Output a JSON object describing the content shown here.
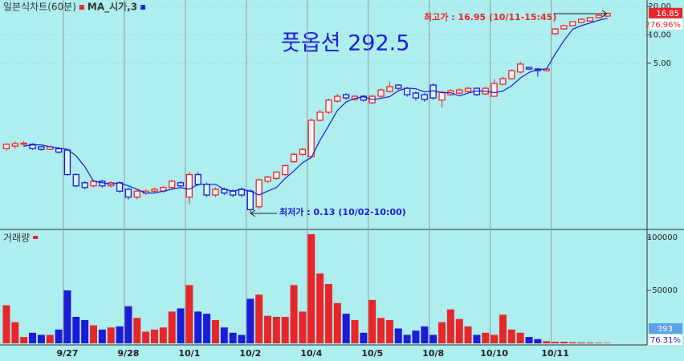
{
  "chart_data": [
    {
      "type": "candlestick",
      "title": "일본식차트(60분)",
      "headline": "풋옵션 292.5",
      "categories": [
        null,
        null,
        null,
        null,
        null,
        null,
        null,
        "9/27",
        null,
        null,
        null,
        null,
        null,
        null,
        "9/28",
        null,
        null,
        null,
        null,
        null,
        null,
        "10/1",
        null,
        null,
        null,
        null,
        null,
        null,
        "10/2",
        null,
        null,
        null,
        null,
        null,
        null,
        "10/4",
        null,
        null,
        null,
        null,
        null,
        null,
        "10/5",
        null,
        null,
        null,
        null,
        null,
        null,
        "10/8",
        null,
        null,
        null,
        null,
        null,
        null,
        "10/10",
        null,
        null,
        null,
        null,
        null,
        null,
        "10/11",
        null,
        null,
        null,
        null,
        null,
        null
      ],
      "open": [
        0.62,
        0.66,
        0.69,
        0.69,
        0.65,
        0.61,
        0.62,
        0.6,
        0.33,
        0.27,
        0.25,
        0.28,
        0.25,
        0.27,
        0.23,
        0.19,
        0.21,
        0.22,
        0.22,
        0.24,
        0.27,
        0.19,
        0.33,
        0.26,
        0.2,
        0.23,
        0.22,
        0.23,
        0.22,
        0.15,
        0.28,
        0.3,
        0.33,
        0.45,
        0.54,
        0.51,
        1.24,
        1.51,
        1.98,
        2.32,
        2.06,
        2.23,
        1.9,
        2.23,
        2.51,
        2.93,
        2.71,
        2.41,
        2.32,
        2.93,
        2.03,
        2.32,
        2.41,
        2.51,
        2.71,
        2.36,
        2.23,
        2.99,
        3.43,
        4.03,
        4.51,
        4.34,
        4.17,
        10.27,
        11.55,
        12.5,
        13.52,
        14.0,
        15.21,
        15.8
      ],
      "high": [
        0.71,
        0.74,
        0.75,
        0.71,
        0.66,
        0.67,
        0.64,
        0.62,
        0.34,
        0.28,
        0.29,
        0.29,
        0.28,
        0.28,
        0.24,
        0.23,
        0.23,
        0.24,
        0.25,
        0.29,
        0.28,
        0.35,
        0.35,
        0.27,
        0.24,
        0.24,
        0.23,
        0.24,
        0.23,
        0.3,
        0.32,
        0.36,
        0.42,
        0.56,
        0.63,
        1.3,
        1.6,
        2.1,
        2.35,
        2.4,
        2.3,
        2.3,
        2.3,
        2.7,
        3.2,
        3.0,
        2.8,
        2.5,
        2.4,
        3.05,
        2.55,
        2.65,
        2.7,
        2.8,
        2.75,
        2.8,
        3.4,
        3.6,
        4.3,
        5.2,
        4.6,
        4.45,
        4.4,
        11.8,
        12.8,
        14.0,
        14.9,
        15.5,
        16.4,
        16.95
      ],
      "low": [
        0.59,
        0.62,
        0.65,
        0.6,
        0.59,
        0.6,
        0.55,
        0.32,
        0.24,
        0.23,
        0.24,
        0.24,
        0.24,
        0.21,
        0.18,
        0.18,
        0.2,
        0.21,
        0.21,
        0.23,
        0.24,
        0.16,
        0.25,
        0.19,
        0.19,
        0.2,
        0.19,
        0.19,
        0.13,
        0.14,
        0.27,
        0.29,
        0.32,
        0.44,
        0.52,
        0.5,
        1.2,
        1.45,
        1.9,
        2.05,
        2.0,
        1.95,
        1.85,
        2.15,
        2.45,
        2.6,
        2.2,
        2.0,
        1.95,
        2.05,
        1.7,
        2.25,
        2.35,
        2.45,
        2.25,
        2.3,
        2.2,
        2.9,
        3.35,
        3.9,
        4.25,
        3.6,
        4.1,
        10.0,
        11.3,
        12.3,
        13.3,
        13.8,
        15.0,
        15.6
      ],
      "close": [
        0.69,
        0.7,
        0.71,
        0.62,
        0.61,
        0.65,
        0.57,
        0.33,
        0.25,
        0.24,
        0.28,
        0.25,
        0.27,
        0.22,
        0.19,
        0.22,
        0.22,
        0.23,
        0.24,
        0.28,
        0.25,
        0.33,
        0.26,
        0.2,
        0.23,
        0.21,
        0.2,
        0.2,
        0.14,
        0.29,
        0.31,
        0.35,
        0.41,
        0.54,
        0.61,
        1.24,
        1.51,
        2.03,
        2.23,
        2.14,
        2.23,
        2.03,
        2.23,
        2.6,
        2.82,
        2.71,
        2.32,
        2.14,
        2.06,
        2.14,
        2.46,
        2.55,
        2.6,
        2.71,
        2.32,
        2.71,
        3.05,
        3.43,
        4.17,
        4.89,
        4.34,
        4.17,
        4.34,
        11.55,
        12.5,
        13.79,
        14.62,
        15.21,
        16.12,
        16.85
      ],
      "up_color": "#e8262a",
      "down_color": "#1c1cd6",
      "series": [
        {
          "name": "MA_시가,3",
          "color": "#1c1cd6",
          "values": [
            null,
            null,
            0.66,
            0.68,
            0.68,
            0.65,
            0.63,
            0.61,
            0.52,
            0.4,
            0.28,
            0.27,
            0.26,
            0.27,
            0.25,
            0.23,
            0.21,
            0.21,
            0.22,
            0.23,
            0.24,
            0.23,
            0.26,
            0.26,
            0.26,
            0.23,
            0.22,
            0.23,
            0.22,
            0.2,
            0.22,
            0.24,
            0.3,
            0.36,
            0.44,
            0.5,
            0.76,
            1.09,
            1.58,
            1.94,
            2.12,
            2.2,
            2.06,
            2.12,
            2.21,
            2.56,
            2.72,
            2.68,
            2.48,
            2.55,
            2.43,
            2.43,
            2.25,
            2.41,
            2.54,
            2.53,
            2.43,
            2.53,
            2.88,
            3.48,
            3.99,
            4.29,
            4.34,
            6.26,
            8.66,
            11.44,
            12.52,
            13.34,
            14.24,
            15.0
          ]
        }
      ],
      "log_scale": true,
      "ylim": [
        0.088,
        23.4
      ],
      "yticks": [
        {
          "value": 20,
          "label": "20.00"
        },
        {
          "value": 10,
          "label": "10.00"
        },
        {
          "value": 5,
          "label": "5.00"
        }
      ],
      "change_label": "276.96%",
      "annotations": [
        {
          "text": "최고가 : 16.95 (10/11-15:45)",
          "color": "#e8262a"
        },
        {
          "text": "최저가 : 0.13 (10/02-10:00)",
          "color": "#1c1cd6"
        }
      ]
    },
    {
      "type": "bar",
      "title": "거래량",
      "values": [
        36000,
        20000,
        6000,
        10000,
        8000,
        8000,
        13000,
        50000,
        25000,
        22000,
        17000,
        13000,
        15000,
        16000,
        35000,
        24000,
        11000,
        13000,
        15000,
        30000,
        33000,
        55000,
        30000,
        28000,
        22000,
        15000,
        10000,
        8000,
        42000,
        46000,
        26000,
        25000,
        25000,
        55000,
        30000,
        103000,
        66000,
        56000,
        38000,
        28000,
        22000,
        10000,
        41000,
        24000,
        22000,
        14000,
        8000,
        12000,
        16000,
        8000,
        20000,
        32000,
        23000,
        16000,
        8000,
        10000,
        8000,
        27000,
        13000,
        10000,
        6000,
        4000,
        2000,
        1500,
        1500,
        1000,
        900,
        800,
        600,
        393
      ],
      "ylim": [
        0,
        106000
      ],
      "yticks": [
        100000,
        50000
      ],
      "change_label": "76.31%"
    }
  ]
}
